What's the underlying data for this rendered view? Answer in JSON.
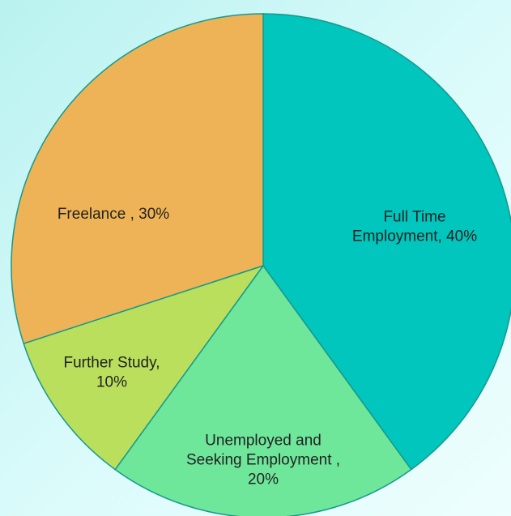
{
  "chart_data": {
    "type": "pie",
    "values": [
      40,
      20,
      10,
      30
    ],
    "value_labels": [
      "Full Time Employment, 40%",
      "Unemployed and Seeking Employment , 20%",
      "Further Study, 10%",
      "Freelance , 30%"
    ],
    "colors": [
      "#00c6bd",
      "#6fe79b",
      "#b9df5d",
      "#eeb356"
    ],
    "start_angle": 0,
    "direction": "clockwise"
  }
}
